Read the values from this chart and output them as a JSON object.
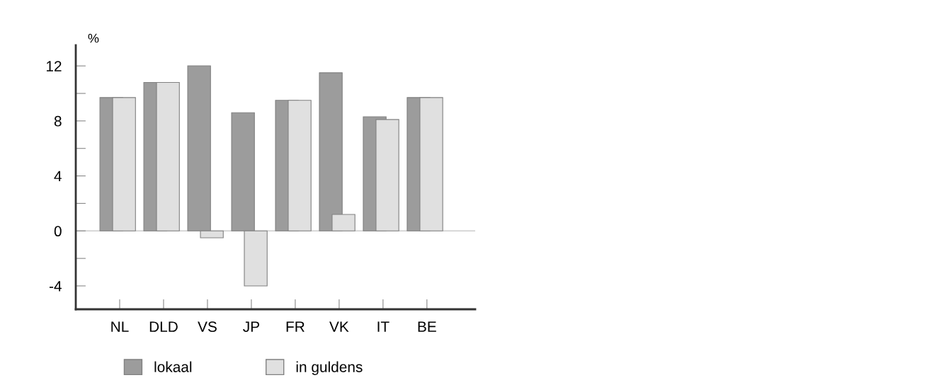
{
  "chart_data": {
    "type": "bar",
    "ylabel": "%",
    "categories": [
      "NL",
      "DLD",
      "VS",
      "JP",
      "FR",
      "VK",
      "IT",
      "BE"
    ],
    "series": [
      {
        "name": "lokaal",
        "color": "#9c9c9c",
        "values": [
          9.7,
          10.8,
          12.0,
          8.6,
          9.5,
          11.5,
          8.3,
          9.7
        ]
      },
      {
        "name": "in guldens",
        "color": "#e0e0e0",
        "values": [
          9.7,
          10.8,
          -0.5,
          -4.0,
          9.5,
          1.2,
          8.1,
          9.7
        ]
      }
    ],
    "ylim": [
      -5.7,
      13.5
    ],
    "yticks": [
      -4,
      {
        "value": -2,
        "label": null
      },
      0,
      {
        "value": 2,
        "label": null
      },
      4,
      {
        "value": 6,
        "label": null
      },
      8,
      {
        "value": 10,
        "label": null
      },
      12
    ],
    "ref_lines": [
      {
        "axis": "y",
        "value": 0,
        "color": "#cccccc"
      }
    ],
    "grid": false,
    "legend": "bottom"
  }
}
